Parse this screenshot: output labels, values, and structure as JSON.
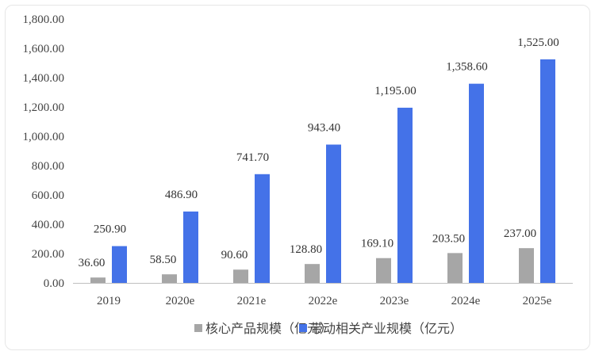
{
  "chart_data": {
    "type": "bar",
    "categories": [
      "2019",
      "2020e",
      "2021e",
      "2022e",
      "2023e",
      "2024e",
      "2025e"
    ],
    "series": [
      {
        "name": "核心产品规模（亿元）",
        "color": "#a6a6a6",
        "values": [
          36.6,
          58.5,
          90.6,
          128.8,
          169.1,
          203.5,
          237.0
        ],
        "labels": [
          "36.60",
          "58.50",
          "90.60",
          "128.80",
          "169.10",
          "203.50",
          "237.00"
        ]
      },
      {
        "name": "带动相关产业规模（亿元）",
        "color": "#4472e8",
        "values": [
          250.9,
          486.9,
          741.7,
          943.4,
          1195.0,
          1358.6,
          1525.0
        ],
        "labels": [
          "250.90",
          "486.90",
          "741.70",
          "943.40",
          "1,195.00",
          "1,358.60",
          "1,525.00"
        ]
      }
    ],
    "ylim": [
      0,
      1800
    ],
    "yticks": [
      0,
      200,
      400,
      600,
      800,
      1000,
      1200,
      1400,
      1600,
      1800
    ],
    "ytick_labels": [
      "0.00",
      "200.00",
      "400.00",
      "600.00",
      "800.00",
      "1,000.00",
      "1,200.00",
      "1,400.00",
      "1,600.00",
      "1,800.00"
    ],
    "grid": false,
    "legend_position": "bottom"
  }
}
